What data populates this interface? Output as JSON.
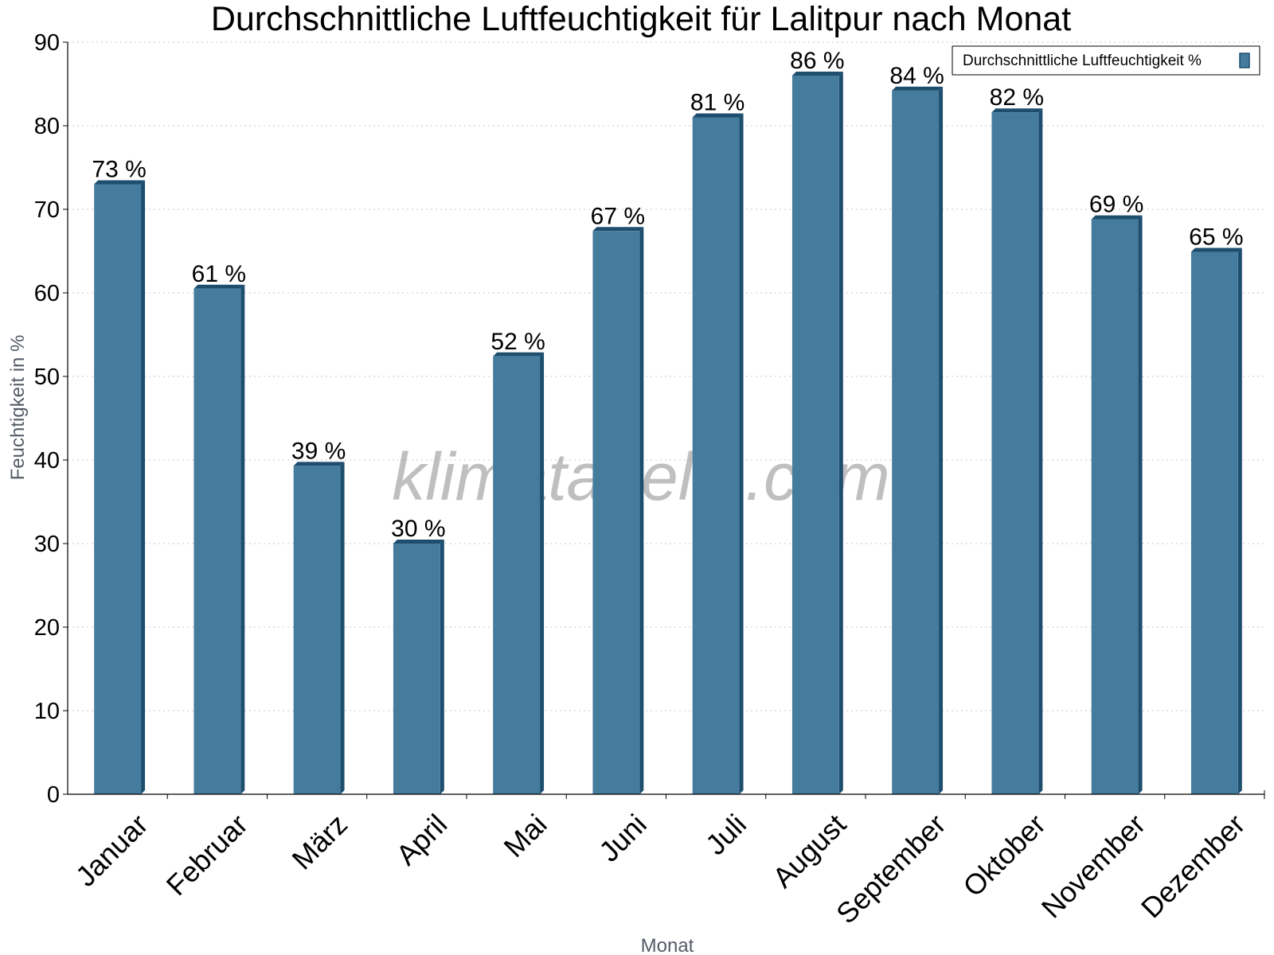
{
  "chart_data": {
    "type": "bar",
    "title": "Durchschnittliche Luftfeuchtigkeit für Lalitpur nach Monat",
    "xlabel": "Monat",
    "ylabel": "Feuchtigkeit in %",
    "ylim": [
      0,
      90
    ],
    "yticks": [
      "0",
      "10",
      "20",
      "30",
      "40",
      "50",
      "60",
      "70",
      "80",
      "90"
    ],
    "grid": "horizontal-dotted",
    "legend_position": "top-right",
    "categories": [
      "Januar",
      "Februar",
      "März",
      "April",
      "Mai",
      "Juni",
      "Juli",
      "August",
      "September",
      "Oktober",
      "November",
      "Dezember"
    ],
    "series": [
      {
        "name": "Durchschnittliche Luftfeuchtigkeit %",
        "values": [
          73,
          60.5,
          39.3,
          30,
          52.4,
          67.4,
          81,
          86,
          84.2,
          81.6,
          68.8,
          64.9
        ],
        "labels": [
          "73 %",
          "61 %",
          "39 %",
          "30 %",
          "52 %",
          "67 %",
          "81 %",
          "86 %",
          "84 %",
          "82 %",
          "69 %",
          "65 %"
        ],
        "color": "#457b9d",
        "edge_color": "#1d4e6e"
      }
    ],
    "watermark": "klimatabelle.com"
  }
}
